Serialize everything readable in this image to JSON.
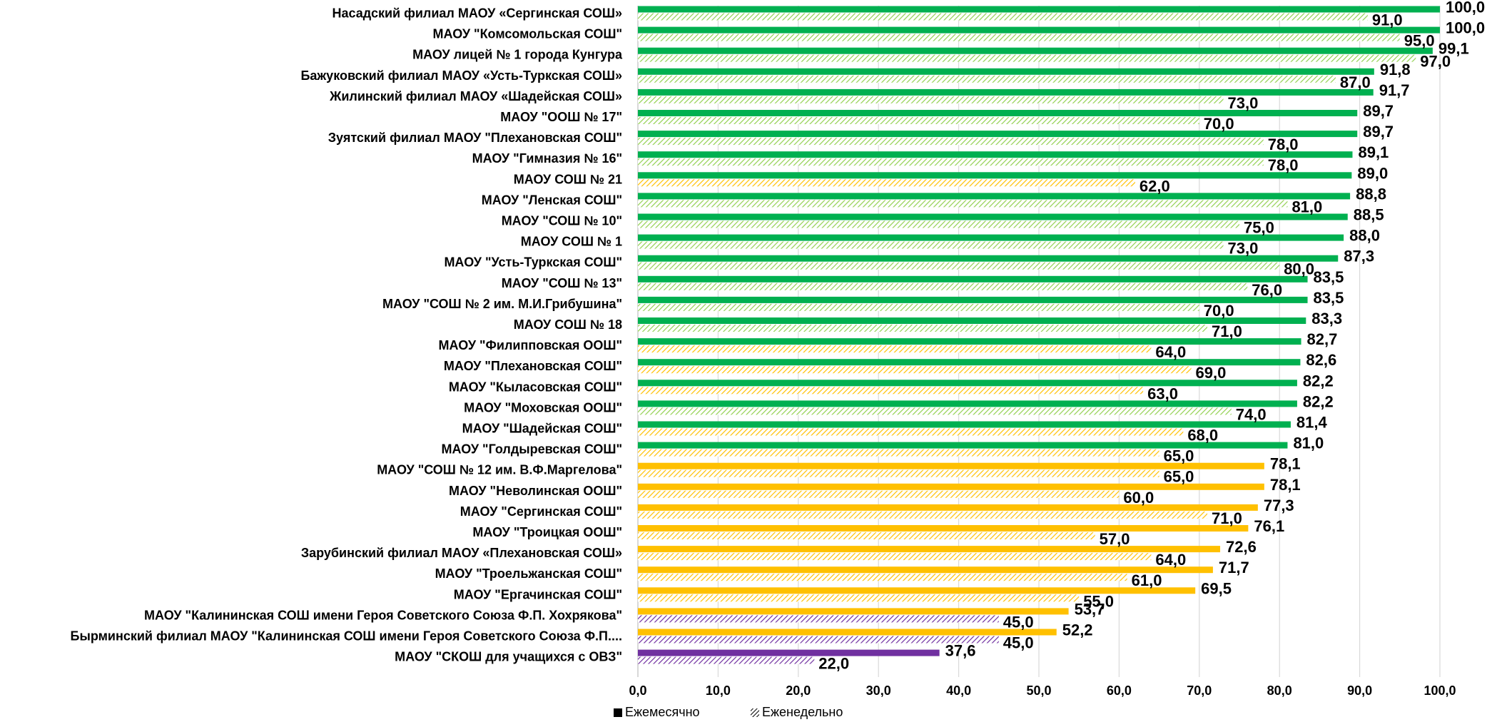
{
  "chart_data": {
    "type": "bar",
    "orientation": "horizontal",
    "categories": [
      "Насадский филиал МАОУ «Сергинская СОШ»",
      "МАОУ \"Комсомольская СОШ\"",
      "МАОУ лицей № 1 города Кунгура",
      "Бажуковский филиал МАОУ «Усть-Туркская СОШ»",
      "Жилинский филиал МАОУ «Шадейская СОШ»",
      "МАОУ \"ООШ № 17\"",
      "Зуятский филиал МАОУ \"Плехановская СОШ\"",
      "МАОУ \"Гимназия № 16\"",
      "МАОУ СОШ № 21",
      "МАОУ \"Ленская СОШ\"",
      "МАОУ \"СОШ № 10\"",
      "МАОУ СОШ № 1",
      "МАОУ \"Усть-Туркская СОШ\"",
      "МАОУ \"СОШ № 13\"",
      "МАОУ \"СОШ № 2 им. М.И.Грибушина\"",
      "МАОУ СОШ № 18",
      "МАОУ \"Филипповская ООШ\"",
      "МАОУ \"Плехановская СОШ\"",
      "МАОУ \"Кыласовская СОШ\"",
      "МАОУ \"Моховская ООШ\"",
      "МАОУ \"Шадейская СОШ\"",
      "МАОУ \"Голдыревская СОШ\"",
      "МАОУ \"СОШ № 12 им. В.Ф.Маргелова\"",
      "МАОУ \"Неволинская ООШ\"",
      "МАОУ \"Сергинская СОШ\"",
      "МАОУ \"Троицкая ООШ\"",
      "Зарубинский филиал МАОУ «Плехановская СОШ»",
      "МАОУ \"Троельжанская СОШ\"",
      "МАОУ \"Ергачинская СОШ\"",
      "МАОУ \"Калининская СОШ имени Героя Советского Союза Ф.П. Хохрякова\"",
      "Бырминский филиал МАОУ \"Калининская СОШ имени Героя Советского Союза Ф.П....",
      "МАОУ \"СКОШ для учащихся с ОВЗ\""
    ],
    "series": [
      {
        "name": "Ежемесячно",
        "pattern": "solid",
        "values": [
          100.0,
          100.0,
          99.1,
          91.8,
          91.7,
          89.7,
          89.7,
          89.1,
          89.0,
          88.8,
          88.5,
          88.0,
          87.3,
          83.5,
          83.5,
          83.3,
          82.7,
          82.6,
          82.2,
          82.2,
          81.4,
          81.0,
          78.1,
          78.1,
          77.3,
          76.1,
          72.6,
          71.7,
          69.5,
          53.7,
          52.2,
          37.6
        ],
        "labels": [
          "100,0",
          "100,0",
          "99,1",
          "91,8",
          "91,7",
          "89,7",
          "89,7",
          "89,1",
          "89,0",
          "88,8",
          "88,5",
          "88,0",
          "87,3",
          "83,5",
          "83,5",
          "83,3",
          "82,7",
          "82,6",
          "82,2",
          "82,2",
          "81,4",
          "81,0",
          "78,1",
          "78,1",
          "77,3",
          "76,1",
          "72,6",
          "71,7",
          "69,5",
          "53,7",
          "52,2",
          "37,6"
        ]
      },
      {
        "name": "Еженедельно",
        "pattern": "hatched",
        "values": [
          91.0,
          95.0,
          97.0,
          87.0,
          73.0,
          70.0,
          78.0,
          78.0,
          62.0,
          81.0,
          75.0,
          73.0,
          80.0,
          76.0,
          70.0,
          71.0,
          64.0,
          69.0,
          63.0,
          74.0,
          68.0,
          65.0,
          65.0,
          60.0,
          71.0,
          57.0,
          64.0,
          61.0,
          55.0,
          45.0,
          45.0,
          22.0
        ],
        "labels": [
          "91,0",
          "95,0",
          "97,0",
          "87,0",
          "73,0",
          "70,0",
          "78,0",
          "78,0",
          "62,0",
          "81,0",
          "75,0",
          "73,0",
          "80,0",
          "76,0",
          "70,0",
          "71,0",
          "64,0",
          "69,0",
          "63,0",
          "74,0",
          "68,0",
          "65,0",
          "65,0",
          "60,0",
          "71,0",
          "57,0",
          "64,0",
          "61,0",
          "55,0",
          "45,0",
          "45,0",
          "22,0"
        ]
      }
    ],
    "bar_colors": [
      "#00B050",
      "#00B050",
      "#00B050",
      "#00B050",
      "#00B050",
      "#00B050",
      "#00B050",
      "#00B050",
      "#00B050",
      "#00B050",
      "#00B050",
      "#00B050",
      "#00B050",
      "#00B050",
      "#00B050",
      "#00B050",
      "#00B050",
      "#00B050",
      "#00B050",
      "#00B050",
      "#00B050",
      "#00B050",
      "#FFC000",
      "#FFC000",
      "#FFC000",
      "#FFC000",
      "#FFC000",
      "#FFC000",
      "#FFC000",
      "#FFC000",
      "#FFC000",
      "#7030A0"
    ],
    "hatch_colors": [
      "#92D050",
      "#92D050",
      "#92D050",
      "#92D050",
      "#92D050",
      "#92D050",
      "#92D050",
      "#92D050",
      "#FFC000",
      "#92D050",
      "#92D050",
      "#92D050",
      "#92D050",
      "#92D050",
      "#92D050",
      "#92D050",
      "#FFC000",
      "#FFC000",
      "#FFC000",
      "#92D050",
      "#FFC000",
      "#FFC000",
      "#FFC000",
      "#FFC000",
      "#FFC000",
      "#FFC000",
      "#FFC000",
      "#FFC000",
      "#FFC000",
      "#7030A0",
      "#7030A0",
      "#7030A0"
    ],
    "xlim": [
      0,
      100
    ],
    "xticks": [
      0,
      10,
      20,
      30,
      40,
      50,
      60,
      70,
      80,
      90,
      100
    ],
    "xtick_labels": [
      "0,0",
      "10,0",
      "20,0",
      "30,0",
      "40,0",
      "50,0",
      "60,0",
      "70,0",
      "80,0",
      "90,0",
      "100,0"
    ],
    "grid": "vertical",
    "legend_position": "bottom",
    "legend": [
      {
        "label": "Ежемесячно",
        "style": "solid",
        "color": "#000000"
      },
      {
        "label": "Еженедельно",
        "style": "hatched",
        "color": "#000000"
      }
    ],
    "colors": {
      "grid": "#D9D9D9",
      "axis": "#BFBFBF",
      "text": "#000000"
    }
  }
}
